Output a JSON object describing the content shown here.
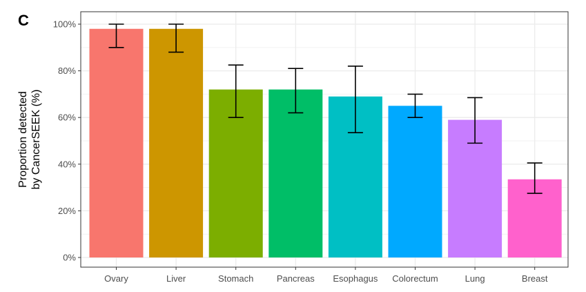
{
  "panel_label": "C",
  "chart_data": {
    "type": "bar",
    "categories": [
      "Ovary",
      "Liver",
      "Stomach",
      "Pancreas",
      "Esophagus",
      "Colorectum",
      "Lung",
      "Breast"
    ],
    "values": [
      98,
      98,
      72,
      72,
      69,
      65,
      59,
      33.5
    ],
    "error_low": [
      90,
      88,
      60,
      62,
      53.5,
      60,
      49,
      27.5
    ],
    "error_high": [
      100,
      100,
      82.5,
      81,
      82,
      70,
      68.5,
      40.5
    ],
    "colors": [
      "#F8766D",
      "#CD9600",
      "#7CAE00",
      "#00BE67",
      "#00BFC4",
      "#00A9FF",
      "#C77CFF",
      "#FF61CC"
    ],
    "ylabel_line1": "Proportion detected",
    "ylabel_line2": "by CancerSEEK (%)",
    "ylim": [
      0,
      100
    ],
    "yticks": [
      0,
      20,
      40,
      60,
      80,
      100
    ],
    "ytick_labels": [
      "0%",
      "20%",
      "40%",
      "60%",
      "80%",
      "100%"
    ],
    "grid": true,
    "theme": "bw"
  }
}
